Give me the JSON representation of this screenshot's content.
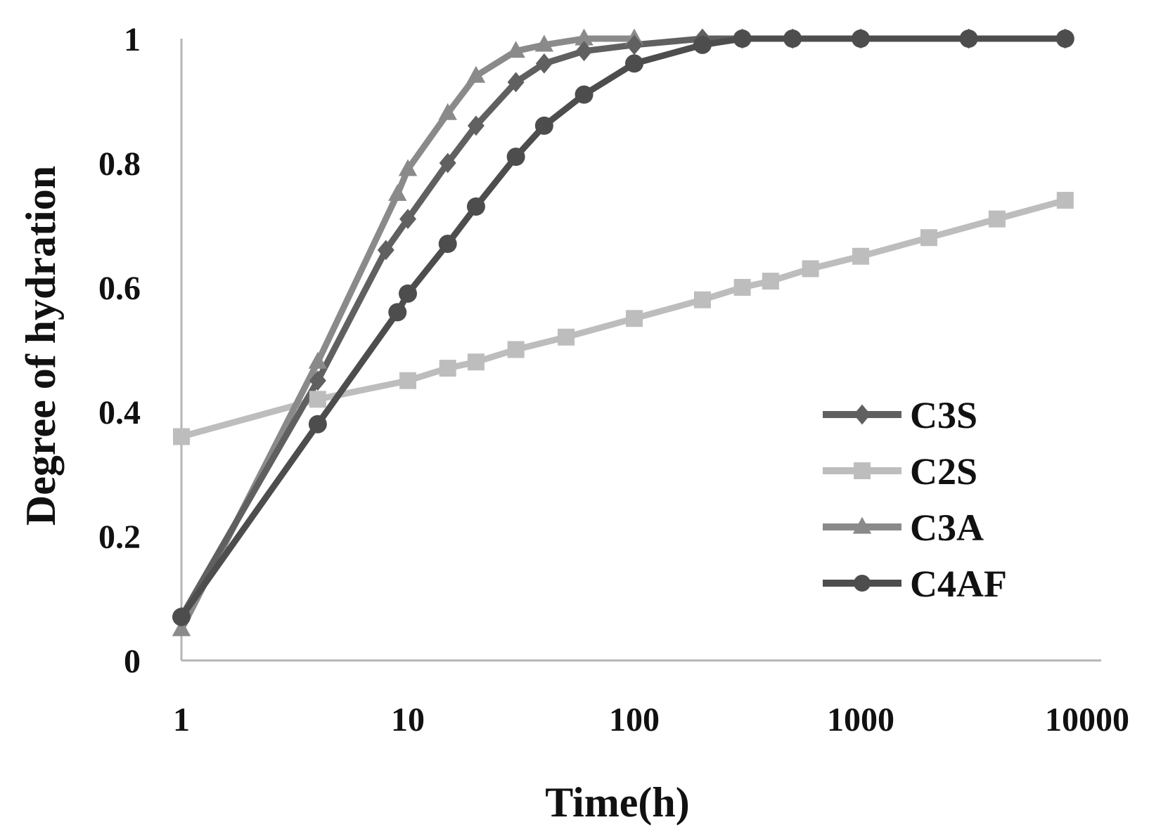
{
  "chart_data": {
    "type": "line",
    "title": "",
    "xlabel": "Time(h)",
    "ylabel": "Degree of hydration",
    "x_scale": "log",
    "xlim": [
      1,
      10000
    ],
    "ylim": [
      0,
      1
    ],
    "x_ticks": [
      1,
      10,
      100,
      1000,
      10000
    ],
    "x_tick_labels": [
      "1",
      "10",
      "100",
      "1000",
      "10000"
    ],
    "y_ticks": [
      0,
      0.2,
      0.4,
      0.6,
      0.8,
      1
    ],
    "y_tick_labels": [
      "0",
      "0.2",
      "0.4",
      "0.6",
      "0.8",
      "1"
    ],
    "grid": false,
    "legend_position": "right-middle",
    "series": [
      {
        "name": "C3S",
        "color": "#606060",
        "marker": "diamond",
        "x": [
          1,
          4,
          8,
          10,
          15,
          20,
          30,
          40,
          60,
          100,
          200,
          300,
          500,
          1000,
          3000,
          8000
        ],
        "y": [
          0.07,
          0.45,
          0.66,
          0.71,
          0.8,
          0.86,
          0.93,
          0.96,
          0.98,
          0.99,
          1.0,
          1.0,
          1.0,
          1.0,
          1.0,
          1.0
        ]
      },
      {
        "name": "C2S",
        "color": "#bdbdbd",
        "marker": "square",
        "x": [
          1,
          4,
          10,
          15,
          20,
          30,
          50,
          100,
          200,
          300,
          400,
          600,
          1000,
          2000,
          4000,
          8000
        ],
        "y": [
          0.36,
          0.42,
          0.45,
          0.47,
          0.48,
          0.5,
          0.52,
          0.55,
          0.58,
          0.6,
          0.61,
          0.63,
          0.65,
          0.68,
          0.71,
          0.74
        ]
      },
      {
        "name": "C3A",
        "color": "#8a8a8a",
        "marker": "triangle",
        "x": [
          1,
          4,
          9,
          10,
          15,
          20,
          30,
          40,
          60,
          100
        ],
        "y": [
          0.05,
          0.48,
          0.75,
          0.79,
          0.88,
          0.94,
          0.98,
          0.99,
          1.0,
          1.0
        ]
      },
      {
        "name": "C4AF",
        "color": "#4d4d4d",
        "marker": "circle",
        "x": [
          1,
          4,
          9,
          10,
          15,
          20,
          30,
          40,
          60,
          100,
          200,
          300,
          500,
          1000,
          3000,
          8000
        ],
        "y": [
          0.07,
          0.38,
          0.56,
          0.59,
          0.67,
          0.73,
          0.81,
          0.86,
          0.91,
          0.96,
          0.99,
          1.0,
          1.0,
          1.0,
          1.0,
          1.0
        ]
      }
    ]
  }
}
